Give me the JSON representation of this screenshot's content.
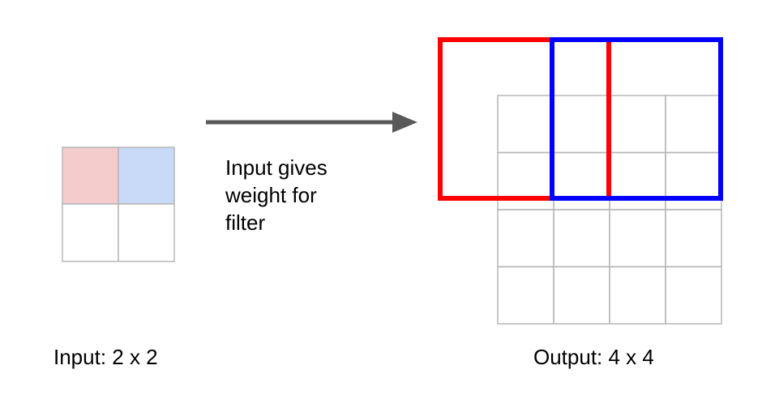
{
  "input": {
    "label": "Input: 2 x 2",
    "rows": 2,
    "cols": 2,
    "highlighted_cells": [
      {
        "row": 0,
        "col": 0,
        "color": "#f4cccc"
      },
      {
        "row": 0,
        "col": 1,
        "color": "#c9daf8"
      }
    ]
  },
  "output": {
    "label": "Output: 4 x 4",
    "rows": 4,
    "cols": 4
  },
  "arrow": {
    "caption_lines": [
      "Input gives",
      "weight for",
      "filter"
    ]
  },
  "colors": {
    "grid_line": "#b7b7b7",
    "arrow": "#595959",
    "first_filter": "#ff0000",
    "second_filter": "#0000ff"
  }
}
